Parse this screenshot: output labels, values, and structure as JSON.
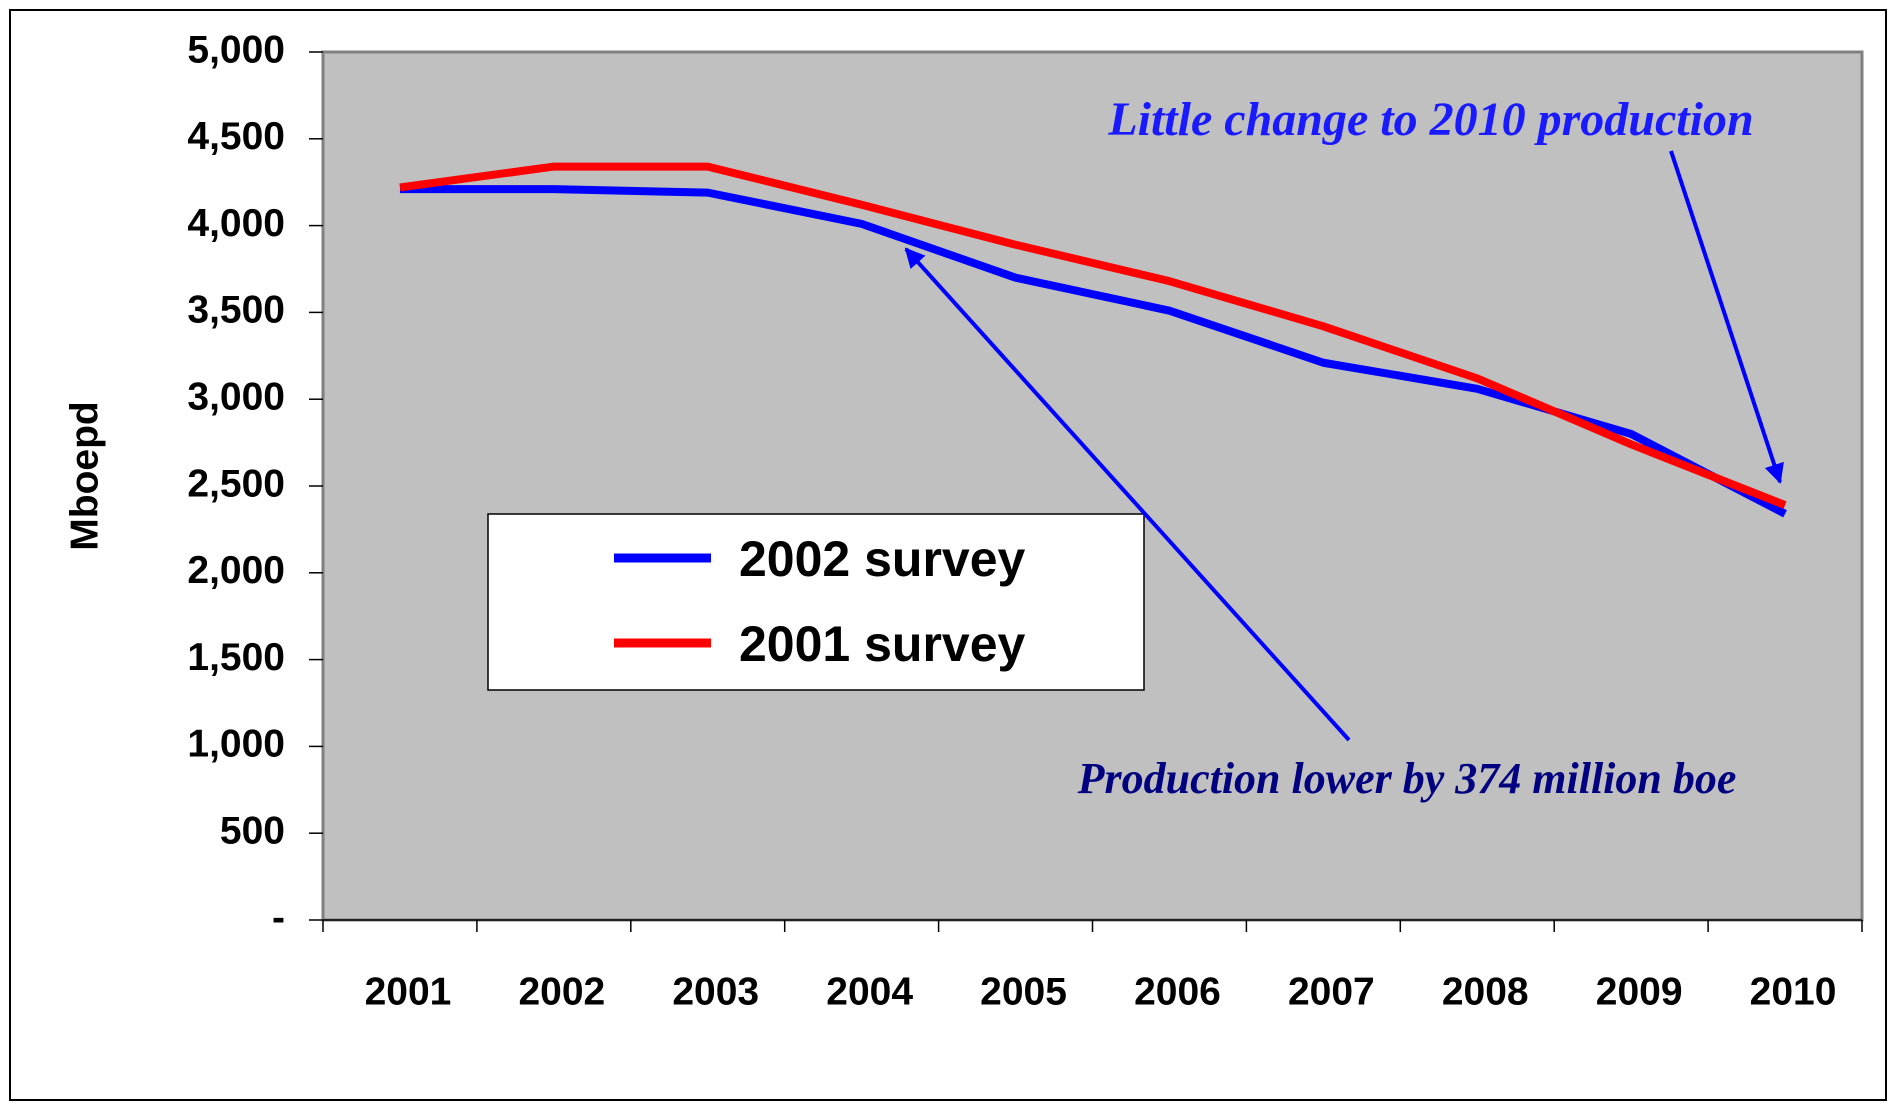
{
  "chart_data": {
    "type": "line",
    "y_label": "Mboepd",
    "categories": [
      "2001",
      "2002",
      "2003",
      "2004",
      "2005",
      "2006",
      "2007",
      "2008",
      "2009",
      "2010"
    ],
    "series": [
      {
        "name": "2002 survey",
        "color": "#0000ff",
        "values": [
          4210,
          4210,
          4190,
          4010,
          3700,
          3510,
          3210,
          3060,
          2800,
          2340
        ]
      },
      {
        "name": "2001 survey",
        "color": "#ff0000",
        "values": [
          4220,
          4340,
          4340,
          4120,
          3890,
          3680,
          3420,
          3120,
          2740,
          2390
        ]
      }
    ],
    "ylim": [
      0,
      5000
    ],
    "yticks": [
      {
        "value": 0,
        "label": "-"
      },
      500,
      {
        "value": 1000,
        "label": "1,000"
      },
      {
        "value": 1500,
        "label": "1,500"
      },
      {
        "value": 2000,
        "label": "2,000"
      },
      {
        "value": 2500,
        "label": "2,500"
      },
      {
        "value": 3000,
        "label": "3,000"
      },
      {
        "value": 3500,
        "label": "3,500"
      },
      {
        "value": 4000,
        "label": "4,000"
      },
      {
        "value": 4500,
        "label": "4,500"
      },
      {
        "value": 5000,
        "label": "5,000"
      }
    ],
    "annotations": [
      "Little change to 2010 production",
      "Production lower by 374 million boe"
    ],
    "plot_background": "#c0c0c0"
  }
}
